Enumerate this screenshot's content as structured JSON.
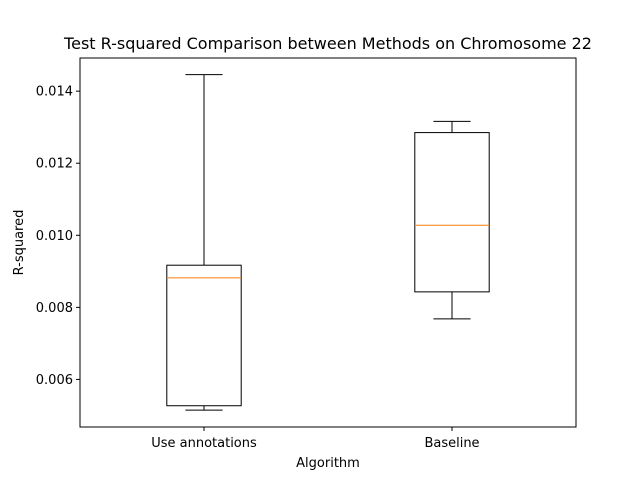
{
  "chart_data": {
    "type": "box",
    "title": "Test R-squared Comparison between Methods on Chromosome 22",
    "xlabel": "Algorithm",
    "ylabel": "R-squared",
    "ylim": [
      0.00468,
      0.01492
    ],
    "yticks": [
      0.006,
      0.008,
      0.01,
      0.012,
      0.014
    ],
    "ytick_labels": [
      "0.006",
      "0.008",
      "0.010",
      "0.012",
      "0.014"
    ],
    "categories": [
      "Use annotations",
      "Baseline"
    ],
    "boxes": [
      {
        "category": "Use annotations",
        "whisker_low": 0.00515,
        "q1": 0.00527,
        "median": 0.00882,
        "q3": 0.00917,
        "whisker_high": 0.01446
      },
      {
        "category": "Baseline",
        "whisker_low": 0.00768,
        "q1": 0.00843,
        "median": 0.01028,
        "q3": 0.01285,
        "whisker_high": 0.01316
      }
    ],
    "grid": false,
    "colors": {
      "box": "#000000",
      "median": "#ff7f0e"
    }
  }
}
